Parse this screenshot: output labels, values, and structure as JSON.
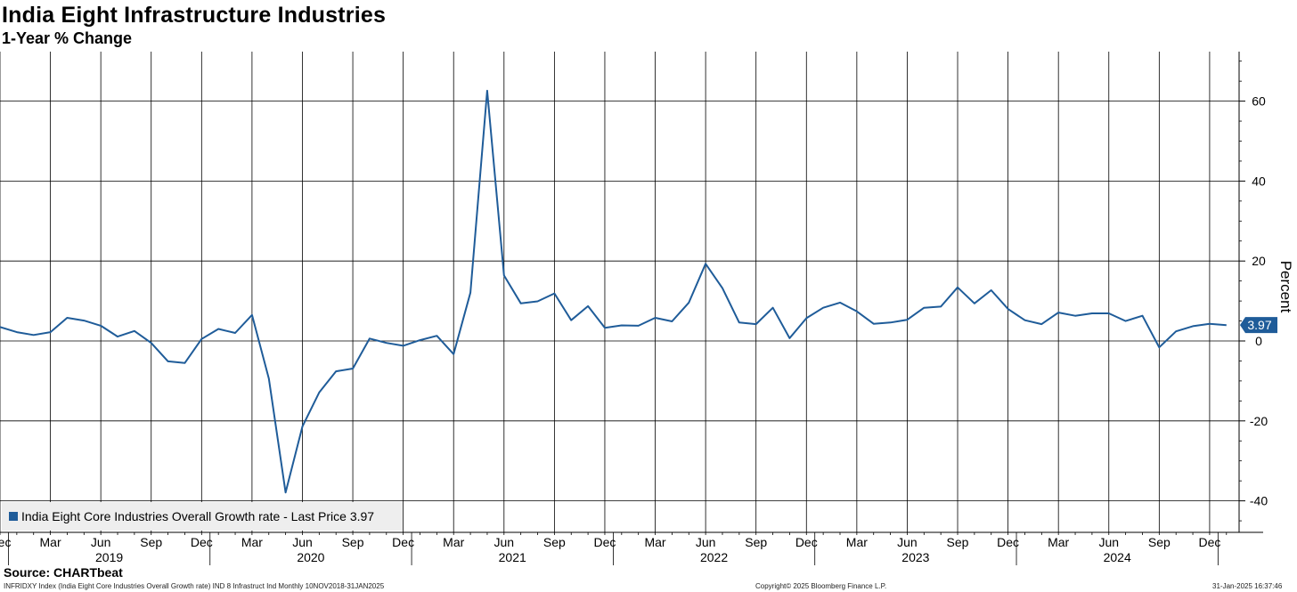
{
  "header": {
    "title": "India Eight Infrastructure Industries",
    "subtitle": "1-Year % Change"
  },
  "legend": {
    "label": "India Eight Core Industries Overall Growth rate - Last Price 3.97"
  },
  "last_price_label": "3.97",
  "source": "Source: CHARTbeat",
  "footer": {
    "left": "INFRIDXY Index (India Eight Core Industries Overall Growth rate) IND 8 Infrastruct Ind  Monthly 10NOV2018-31JAN2025",
    "middle": "Copyright© 2025 Bloomberg Finance L.P.",
    "right": "31-Jan-2025 16:37:46"
  },
  "colors": {
    "line": "#1f5c99",
    "grid": "#000000",
    "legend_bg": "#eeeeee"
  },
  "chart_data": {
    "type": "line",
    "title": "India Eight Infrastructure Industries",
    "subtitle": "1-Year % Change",
    "ylabel": "Percent",
    "ylim": [
      -48,
      72
    ],
    "yticks": [
      -40,
      -20,
      0,
      20,
      40,
      60
    ],
    "quarter_ticks": [
      {
        "label": "Dec",
        "index": 0
      },
      {
        "label": "Mar",
        "index": 3
      },
      {
        "label": "Jun",
        "index": 6
      },
      {
        "label": "Sep",
        "index": 9
      },
      {
        "label": "Dec",
        "index": 12
      },
      {
        "label": "Mar",
        "index": 15
      },
      {
        "label": "Jun",
        "index": 18
      },
      {
        "label": "Sep",
        "index": 21
      },
      {
        "label": "Dec",
        "index": 24
      },
      {
        "label": "Mar",
        "index": 27
      },
      {
        "label": "Jun",
        "index": 30
      },
      {
        "label": "Sep",
        "index": 33
      },
      {
        "label": "Dec",
        "index": 36
      },
      {
        "label": "Mar",
        "index": 39
      },
      {
        "label": "Jun",
        "index": 42
      },
      {
        "label": "Sep",
        "index": 45
      },
      {
        "label": "Dec",
        "index": 48
      },
      {
        "label": "Mar",
        "index": 51
      },
      {
        "label": "Jun",
        "index": 54
      },
      {
        "label": "Sep",
        "index": 57
      },
      {
        "label": "Dec",
        "index": 60
      },
      {
        "label": "Mar",
        "index": 63
      },
      {
        "label": "Jun",
        "index": 66
      },
      {
        "label": "Sep",
        "index": 69
      },
      {
        "label": "Dec",
        "index": 72
      }
    ],
    "year_labels": [
      {
        "label": "2019",
        "index": 6.5
      },
      {
        "label": "2020",
        "index": 18.5
      },
      {
        "label": "2021",
        "index": 30.5
      },
      {
        "label": "2022",
        "index": 42.5
      },
      {
        "label": "2023",
        "index": 54.5
      },
      {
        "label": "2024",
        "index": 66.5
      }
    ],
    "year_boundaries": [
      0.5,
      12.5,
      24.5,
      36.5,
      48.5,
      60.5,
      72.5
    ],
    "x_start": "Nov 2018",
    "frequency": "monthly",
    "series": [
      {
        "name": "India Eight Core Industries Overall Growth rate",
        "last_price": 3.97,
        "values": [
          3.5,
          2.2,
          1.5,
          2.2,
          5.8,
          5.1,
          3.8,
          1.1,
          2.5,
          -0.5,
          -5.1,
          -5.5,
          0.5,
          3.0,
          2.0,
          6.5,
          -9.4,
          -37.9,
          -21.4,
          -12.9,
          -7.6,
          -6.9,
          0.6,
          -0.5,
          -1.2,
          0.2,
          1.3,
          -3.3,
          12.1,
          62.6,
          16.4,
          9.4,
          9.9,
          11.9,
          5.2,
          8.7,
          3.3,
          3.9,
          3.8,
          5.8,
          4.9,
          9.6,
          19.3,
          13.2,
          4.6,
          4.2,
          8.3,
          0.7,
          5.7,
          8.3,
          9.6,
          7.4,
          4.3,
          4.6,
          5.3,
          8.3,
          8.6,
          13.4,
          9.4,
          12.7,
          8.0,
          5.2,
          4.2,
          7.1,
          6.3,
          6.9,
          6.9,
          5.0,
          6.3,
          -1.6,
          2.4,
          3.7,
          4.3,
          3.97
        ]
      }
    ]
  }
}
